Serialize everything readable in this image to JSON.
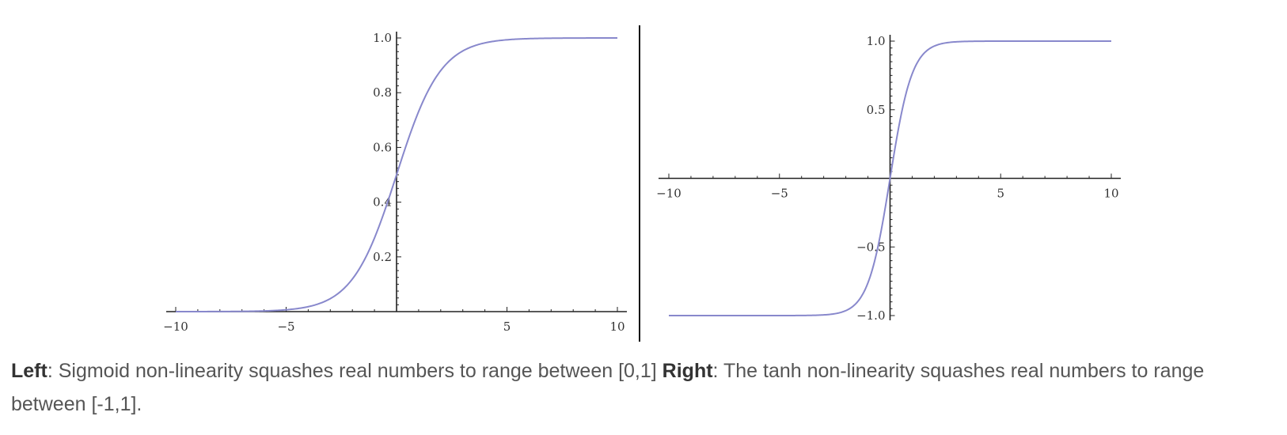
{
  "chart_data": [
    {
      "type": "line",
      "function": "sigmoid",
      "xlim": [
        -10,
        10
      ],
      "ylim": [
        0,
        1
      ],
      "x_ticks": [
        -10,
        -5,
        5,
        10
      ],
      "x_tick_labels": [
        "−10",
        "−5",
        "5",
        "10"
      ],
      "y_ticks": [
        0.2,
        0.4,
        0.6,
        0.8,
        1.0
      ],
      "y_tick_labels": [
        "0.2",
        "0.4",
        "0.6",
        "0.8",
        "1.0"
      ],
      "series": [
        {
          "color": "#8888cc",
          "x": [
            -10,
            -8,
            -6,
            -5,
            -4,
            -3,
            -2,
            -1,
            0,
            1,
            2,
            3,
            4,
            5,
            6,
            8,
            10
          ],
          "y": [
            5e-05,
            0.0003,
            0.0025,
            0.0067,
            0.018,
            0.047,
            0.119,
            0.269,
            0.5,
            0.731,
            0.881,
            0.953,
            0.982,
            0.993,
            0.9975,
            0.9997,
            0.99995
          ]
        }
      ]
    },
    {
      "type": "line",
      "function": "tanh",
      "xlim": [
        -10,
        10
      ],
      "ylim": [
        -1,
        1
      ],
      "x_ticks": [
        -10,
        -5,
        5,
        10
      ],
      "x_tick_labels": [
        "−10",
        "−5",
        "5",
        "10"
      ],
      "y_ticks": [
        -1.0,
        -0.5,
        0.5,
        1.0
      ],
      "y_tick_labels": [
        "−1.0",
        "−0.5",
        "0.5",
        "1.0"
      ],
      "series": [
        {
          "color": "#8888cc",
          "x": [
            -10,
            -5,
            -3,
            -2,
            -1.5,
            -1,
            -0.5,
            0,
            0.5,
            1,
            1.5,
            2,
            3,
            5,
            10
          ],
          "y": [
            -1.0,
            -0.9999,
            -0.995,
            -0.964,
            -0.905,
            -0.762,
            -0.462,
            0,
            0.462,
            0.762,
            0.905,
            0.964,
            0.995,
            0.9999,
            1.0
          ]
        }
      ]
    }
  ],
  "caption": {
    "left_label": "Left",
    "left_text": ": Sigmoid non-linearity squashes real numbers to range between [0,1] ",
    "right_label": "Right",
    "right_text": ": The tanh non-linearity squashes real numbers to range between [-1,1]."
  }
}
